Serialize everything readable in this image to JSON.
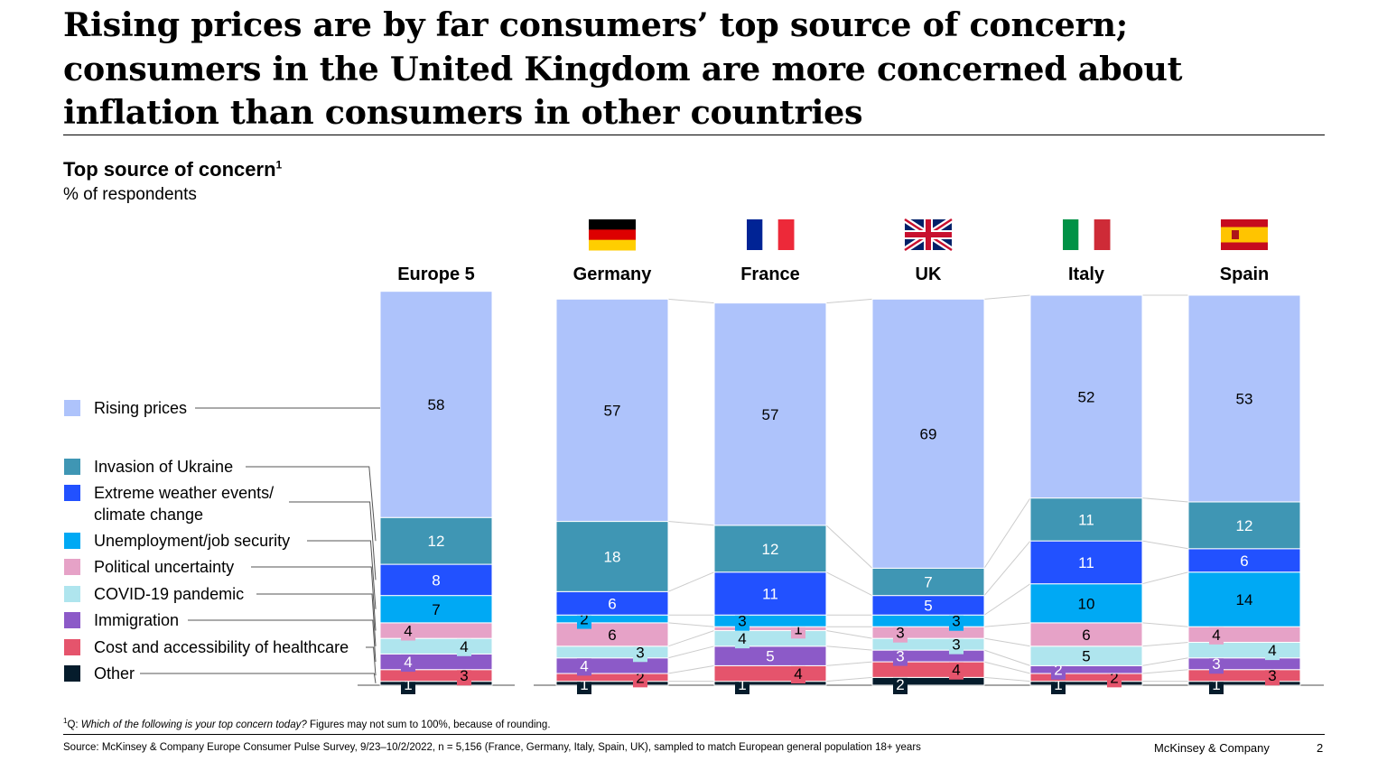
{
  "title_lines": [
    "Rising prices are by far consumers’ top source of concern;",
    "consumers in the United Kingdom are more concerned about",
    "inflation than consumers in other countries"
  ],
  "chart_data": {
    "type": "bar",
    "stacked": true,
    "title": "Top source of concern",
    "title_footnote_marker": "1",
    "ylabel": "% of respondents",
    "categories": [
      "Europe 5",
      "Germany",
      "France",
      "UK",
      "Italy",
      "Spain"
    ],
    "flags": [
      "",
      "germany-flag",
      "france-flag",
      "uk-flag",
      "italy-flag",
      "spain-flag"
    ],
    "series": [
      {
        "name": "Other",
        "color": "#051C2C",
        "values": [
          1,
          1,
          1,
          2,
          1,
          1
        ]
      },
      {
        "name": "Cost and accessibility of healthcare",
        "color": "#E5546C",
        "values": [
          3,
          2,
          4,
          4,
          2,
          3
        ]
      },
      {
        "name": "Immigration",
        "color": "#8C5AC8",
        "values": [
          4,
          4,
          5,
          3,
          2,
          3
        ]
      },
      {
        "name": "COVID-19 pandemic",
        "color": "#AFE5EE",
        "values": [
          4,
          3,
          4,
          3,
          5,
          4
        ]
      },
      {
        "name": "Political uncertainty",
        "color": "#E6A2C7",
        "values": [
          4,
          6,
          1,
          3,
          6,
          4
        ]
      },
      {
        "name": "Unemployment/job security",
        "color": "#00A9F4",
        "values": [
          7,
          2,
          3,
          3,
          10,
          14
        ]
      },
      {
        "name": "Extreme weather events/ climate change",
        "color": "#2251FF",
        "values": [
          8,
          6,
          11,
          5,
          11,
          6
        ]
      },
      {
        "name": "Invasion of Ukraine",
        "color": "#3F96B4",
        "values": [
          12,
          18,
          12,
          7,
          11,
          12
        ]
      },
      {
        "name": "Rising prices",
        "color": "#AEC3FB",
        "values": [
          58,
          57,
          57,
          69,
          52,
          53
        ]
      }
    ],
    "legend_lines": {
      "Extreme weather events/ climate change": [
        "Extreme weather events/",
        "climate change"
      ]
    },
    "legend_placement": "left",
    "grid": false
  },
  "footnote": {
    "marker": "1",
    "prefix": "Q: ",
    "question": "Which of the following is your top concern today?",
    "rest": " Figures may not sum to 100%, because of rounding."
  },
  "source": "Source: McKinsey & Company Europe Consumer Pulse Survey, 9/23–10/2/2022, n = 5,156 (France, Germany, Italy, Spain, UK), sampled to match European general population 18+ years",
  "brand": "McKinsey & Company",
  "page_number": "2"
}
